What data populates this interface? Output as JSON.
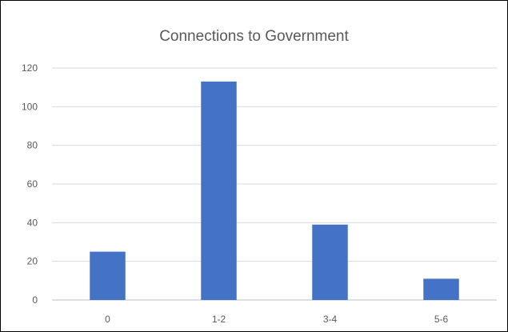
{
  "chart_data": {
    "type": "bar",
    "title": "Connections to Government",
    "xlabel": "",
    "ylabel": "",
    "categories": [
      "0",
      "1-2",
      "3-4",
      "5-6"
    ],
    "values": [
      25,
      113,
      39,
      11
    ],
    "ylim": [
      0,
      120
    ],
    "yticks": [
      0,
      20,
      40,
      60,
      80,
      100,
      120
    ],
    "grid": true,
    "legend": "none",
    "bar_color": "#4472C4",
    "grid_color": "#D9D9D9"
  }
}
